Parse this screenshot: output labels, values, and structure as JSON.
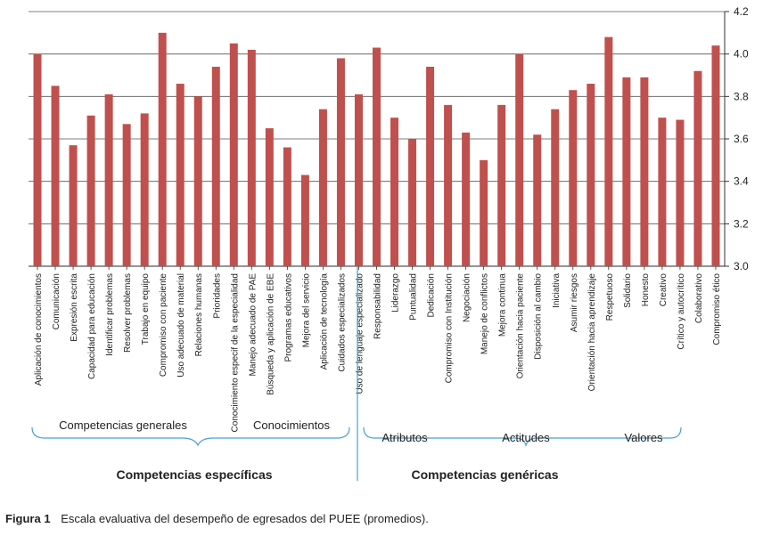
{
  "chart_data": {
    "type": "bar",
    "bar_color": "#C0504D",
    "grid_color": "#555555",
    "ylim": [
      3.0,
      4.2
    ],
    "yticks": [
      "3.0",
      "3.2",
      "3.4",
      "3.6",
      "3.8",
      "4.0",
      "4.2"
    ],
    "ytick_values": [
      3.0,
      3.2,
      3.4,
      3.6,
      3.8,
      4.0,
      4.2
    ],
    "categories": [
      "Aplicación de conocimientos",
      "Comunicación",
      "Expresión escrita",
      "Capacidad para educación",
      "Identificar problemas",
      "Resolver problemas",
      "Trabajo en equipo",
      "Compromiso con paciente",
      "Uso adecuado de material",
      "Relaciones humanas",
      "Prioridades",
      "Conocimiento especif de la especialidad",
      "Manejo adecuado de PAE",
      "Búsqueda y aplicación de EBE",
      "Programas educativos",
      "Mejora del servicio",
      "Aplicación de tecnología",
      "Cuidados especializados",
      "Uso de lenguaje especializado",
      "Responsabilidad",
      "Liderazgo",
      "Puntualidad",
      "Dedicación",
      "Compromiso con Institución",
      "Negociación",
      "Manejo de conflictos",
      "Mejora continua",
      "Orientación hacia paciente",
      "Disposición al cambio",
      "Iniciativa",
      "Asumir riesgos",
      "Orientación hacia aprendizaje",
      "Respetuoso",
      "Solidario",
      "Honesto",
      "Creativo",
      "Crítico y autocrítico",
      "Colaborativo",
      "Compromiso ético"
    ],
    "values": [
      4.0,
      3.85,
      3.57,
      3.71,
      3.81,
      3.67,
      3.72,
      4.1,
      3.86,
      3.8,
      3.94,
      4.05,
      4.02,
      3.65,
      3.56,
      3.43,
      3.74,
      3.98,
      3.81,
      4.03,
      3.7,
      3.6,
      3.94,
      3.76,
      3.63,
      3.5,
      3.76,
      4.0,
      3.62,
      3.74,
      3.83,
      3.86,
      4.08,
      3.89,
      3.89,
      3.7,
      3.69,
      3.92,
      4.04
    ],
    "groups": {
      "competencias_generales": "Competencias generales",
      "conocimientos": "Conocimientos",
      "competencias_especificas": "Competencias específicas",
      "atributos": "Atributos",
      "actitudes": "Actitudes",
      "valores": "Valores",
      "competencias_genericas": "Competencias genéricas"
    }
  },
  "caption": {
    "label": "Figura 1",
    "text": "Escala evaluativa del desempeño de egresados del PUEE (promedios)."
  }
}
